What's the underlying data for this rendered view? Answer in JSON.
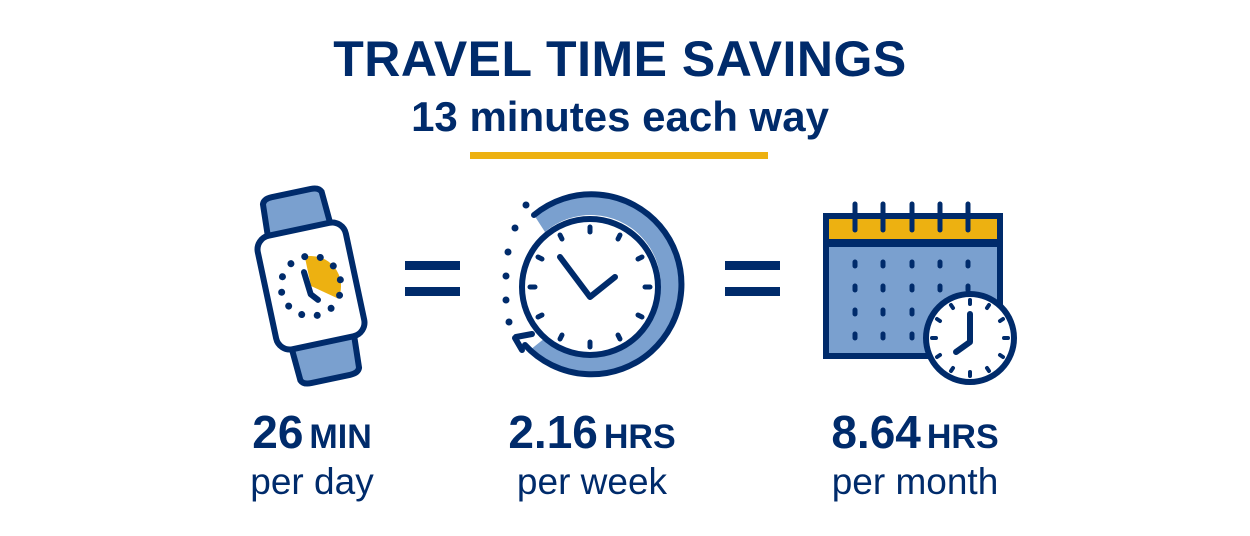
{
  "title": "TRAVEL TIME SAVINGS",
  "subtitle": "13 minutes each way",
  "colors": {
    "navy": "#002b6b",
    "light_blue": "#7aa0cf",
    "gold": "#edb111"
  },
  "icons": [
    "smartwatch-icon",
    "equals-icon",
    "clock-rewind-icon",
    "equals-icon",
    "calendar-clock-icon"
  ],
  "stats": [
    {
      "value": "26",
      "unit": "MIN",
      "period": "per day"
    },
    {
      "value": "2.16",
      "unit": "HRS",
      "period": "per week"
    },
    {
      "value": "8.64",
      "unit": "HRS",
      "period": "per month"
    }
  ]
}
